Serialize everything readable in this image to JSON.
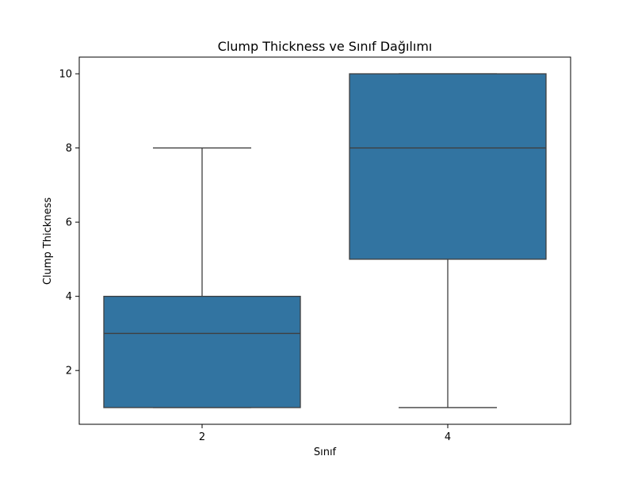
{
  "chart_data": {
    "type": "box",
    "title": "Clump Thickness ve Sınıf Dağılımı",
    "xlabel": "Sınıf",
    "ylabel": "Clump Thickness",
    "categories": [
      "2",
      "4"
    ],
    "boxes": [
      {
        "category": "2",
        "whisker_low": 1,
        "q1": 1,
        "median": 3,
        "q3": 4,
        "whisker_high": 8
      },
      {
        "category": "4",
        "whisker_low": 1,
        "q1": 5,
        "median": 8,
        "q3": 10,
        "whisker_high": 10
      }
    ],
    "ylim": [
      0.55,
      10.45
    ],
    "yticks": [
      2,
      4,
      6,
      8,
      10
    ],
    "grid": false,
    "colors": {
      "box_fill": "#3274a1",
      "line": "#3f3f3f"
    }
  }
}
